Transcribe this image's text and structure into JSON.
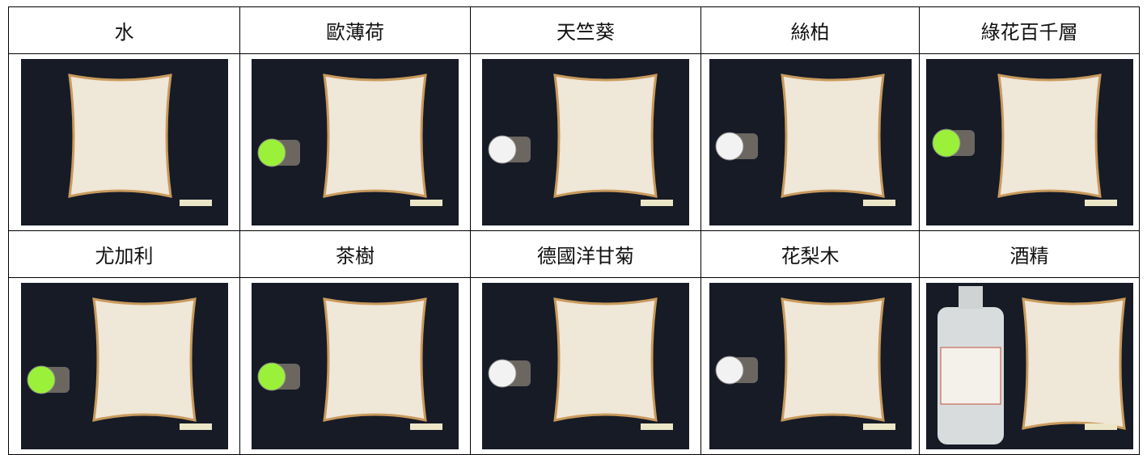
{
  "table": {
    "rows": [
      [
        "水",
        "歐薄荷",
        "天竺葵",
        "絲柏",
        "綠花百千層"
      ],
      [
        "尤加利",
        "茶樹",
        "德國洋甘菊",
        "花梨木",
        "酒精"
      ]
    ]
  }
}
